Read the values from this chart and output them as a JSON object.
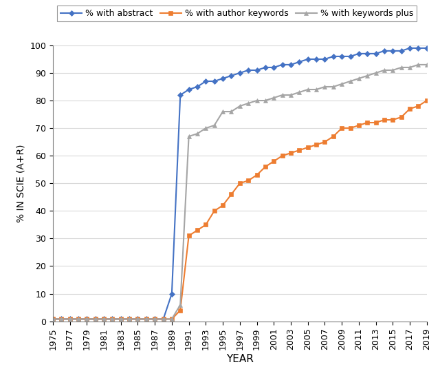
{
  "years": [
    1975,
    1976,
    1977,
    1978,
    1979,
    1980,
    1981,
    1982,
    1983,
    1984,
    1985,
    1986,
    1987,
    1988,
    1989,
    1990,
    1991,
    1992,
    1993,
    1994,
    1995,
    1996,
    1997,
    1998,
    1999,
    2000,
    2001,
    2002,
    2003,
    2004,
    2005,
    2006,
    2007,
    2008,
    2009,
    2010,
    2011,
    2012,
    2013,
    2014,
    2015,
    2016,
    2017,
    2018,
    2019
  ],
  "abstract": [
    0.8,
    0.8,
    0.8,
    0.8,
    0.8,
    0.8,
    0.8,
    0.8,
    0.8,
    0.8,
    0.8,
    0.8,
    0.8,
    0.8,
    10,
    82,
    84,
    85,
    87,
    87,
    88,
    89,
    90,
    91,
    91,
    92,
    92,
    93,
    93,
    94,
    95,
    95,
    95,
    96,
    96,
    96,
    97,
    97,
    97,
    98,
    98,
    98,
    99,
    99,
    99
  ],
  "author_keywords": [
    0.8,
    0.8,
    0.8,
    0.8,
    0.8,
    0.8,
    0.8,
    0.8,
    0.8,
    0.8,
    0.8,
    0.8,
    0.8,
    0.8,
    0.8,
    4,
    31,
    33,
    35,
    40,
    42,
    46,
    50,
    51,
    53,
    56,
    58,
    60,
    61,
    62,
    63,
    64,
    65,
    67,
    70,
    70,
    71,
    72,
    72,
    73,
    73,
    74,
    77,
    78,
    80
  ],
  "keywords_plus": [
    0.8,
    0.8,
    0.8,
    0.8,
    0.8,
    0.8,
    0.8,
    0.8,
    0.8,
    0.8,
    0.8,
    0.8,
    0.8,
    0.8,
    0.8,
    6,
    67,
    68,
    70,
    71,
    76,
    76,
    78,
    79,
    80,
    80,
    81,
    82,
    82,
    83,
    84,
    84,
    85,
    85,
    86,
    87,
    88,
    89,
    90,
    91,
    91,
    92,
    92,
    93,
    93
  ],
  "abstract_color": "#4472C4",
  "author_keywords_color": "#ED7D31",
  "keywords_plus_color": "#A5A5A5",
  "xlabel": "YEAR",
  "ylabel": "% IN SCIE (A+R)",
  "ylim": [
    0,
    100
  ],
  "yticks": [
    0,
    10,
    20,
    30,
    40,
    50,
    60,
    70,
    80,
    90,
    100
  ],
  "legend_labels": [
    "% with abstract",
    "% with author keywords",
    "% with keywords plus"
  ],
  "background_color": "#ffffff",
  "grid_color": "#d9d9d9"
}
